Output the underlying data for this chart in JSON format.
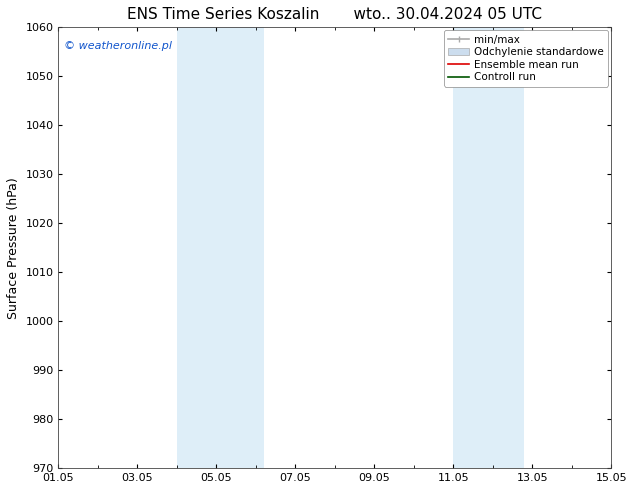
{
  "title_left": "ENS Time Series Koszalin",
  "title_right": "wto.. 30.04.2024 05 UTC",
  "ylabel": "Surface Pressure (hPa)",
  "ylim": [
    970,
    1060
  ],
  "yticks": [
    970,
    980,
    990,
    1000,
    1010,
    1020,
    1030,
    1040,
    1050,
    1060
  ],
  "xlim": [
    0,
    14
  ],
  "xtick_labels": [
    "01.05",
    "03.05",
    "05.05",
    "07.05",
    "09.05",
    "11.05",
    "13.05",
    "15.05"
  ],
  "xtick_positions": [
    0,
    2,
    4,
    6,
    8,
    10,
    12,
    14
  ],
  "shaded_regions": [
    {
      "start": 3,
      "end": 5.2
    },
    {
      "start": 10,
      "end": 11.8
    }
  ],
  "shaded_color": "#deeef8",
  "background_color": "#ffffff",
  "watermark_text": "© weatheronline.pl",
  "watermark_color": "#1155cc",
  "legend_items": [
    {
      "label": "min/max",
      "color": "#aaaaaa",
      "lw": 1.2,
      "style": "solid",
      "type": "minmax"
    },
    {
      "label": "Odchylenie standardowe",
      "color": "#ccddee",
      "lw": 7,
      "style": "solid",
      "type": "band"
    },
    {
      "label": "Ensemble mean run",
      "color": "#dd0000",
      "lw": 1.2,
      "style": "solid",
      "type": "line"
    },
    {
      "label": "Controll run",
      "color": "#005500",
      "lw": 1.2,
      "style": "solid",
      "type": "line"
    }
  ],
  "title_fontsize": 11,
  "axis_label_fontsize": 9,
  "tick_fontsize": 8,
  "legend_fontsize": 7.5,
  "watermark_fontsize": 8
}
